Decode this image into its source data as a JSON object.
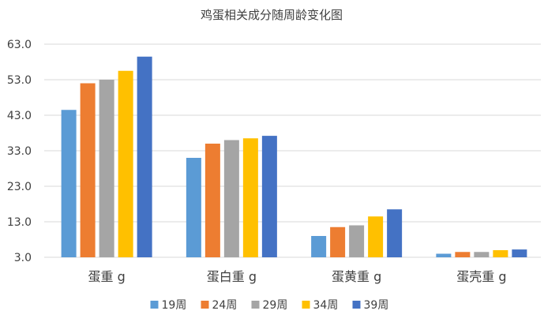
{
  "chart_data": {
    "type": "bar",
    "title": "鸡蛋相关成分随周龄变化图",
    "categories": [
      "蛋重 g",
      "蛋白重 g",
      "蛋黄重 g",
      "蛋壳重 g"
    ],
    "series": [
      {
        "name": "19周",
        "color": "#5b9bd5",
        "values": [
          44.5,
          31.0,
          9.0,
          4.0
        ]
      },
      {
        "name": "24周",
        "color": "#ed7d31",
        "values": [
          52.0,
          35.0,
          11.5,
          4.5
        ]
      },
      {
        "name": "29周",
        "color": "#a5a5a5",
        "values": [
          53.0,
          36.0,
          12.0,
          4.5
        ]
      },
      {
        "name": "34周",
        "color": "#ffc000",
        "values": [
          55.5,
          36.5,
          14.5,
          5.0
        ]
      },
      {
        "name": "39周",
        "color": "#4472c4",
        "values": [
          59.5,
          37.2,
          16.5,
          5.2
        ]
      }
    ],
    "ylim": [
      3.0,
      63.0
    ],
    "yticks": [
      "3.0",
      "13.0",
      "23.0",
      "33.0",
      "43.0",
      "53.0",
      "63.0"
    ],
    "xlabel": "",
    "ylabel": "",
    "grid": true,
    "legend_position": "bottom"
  }
}
